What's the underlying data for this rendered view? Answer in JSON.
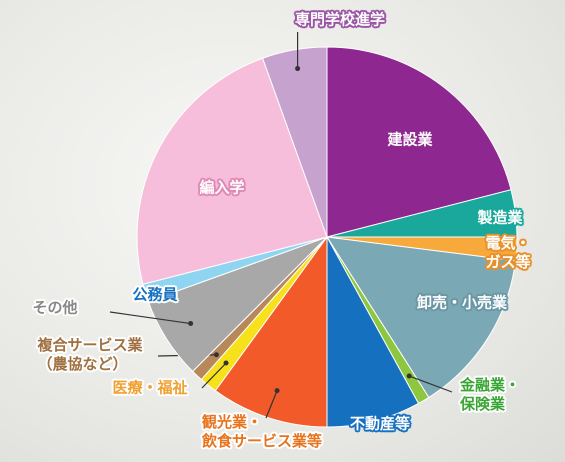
{
  "chart_data": {
    "type": "pie",
    "categories": [
      "建設業",
      "製造業",
      "電気・ガス等",
      "卸売・小売業",
      "金融業・\n保険業",
      "不動産等",
      "観光業・\n飲食サービス業等",
      "医療・福祉",
      "複合サービス業\n（農協など）",
      "その他",
      "公務員",
      "編入学",
      "専門学校進学"
    ],
    "values": [
      21,
      4,
      2,
      14,
      1,
      8,
      10,
      1.5,
      1,
      7,
      1.5,
      23.5,
      5.5
    ],
    "colors": [
      "#8e278f",
      "#19a89b",
      "#f7a93b",
      "#7aa8b5",
      "#8dc63f",
      "#1670c0",
      "#f25a29",
      "#f6e11a",
      "#b8885a",
      "#a8a8a8",
      "#8fd5f2",
      "#f7bedb",
      "#c6a2cf"
    ]
  }
}
